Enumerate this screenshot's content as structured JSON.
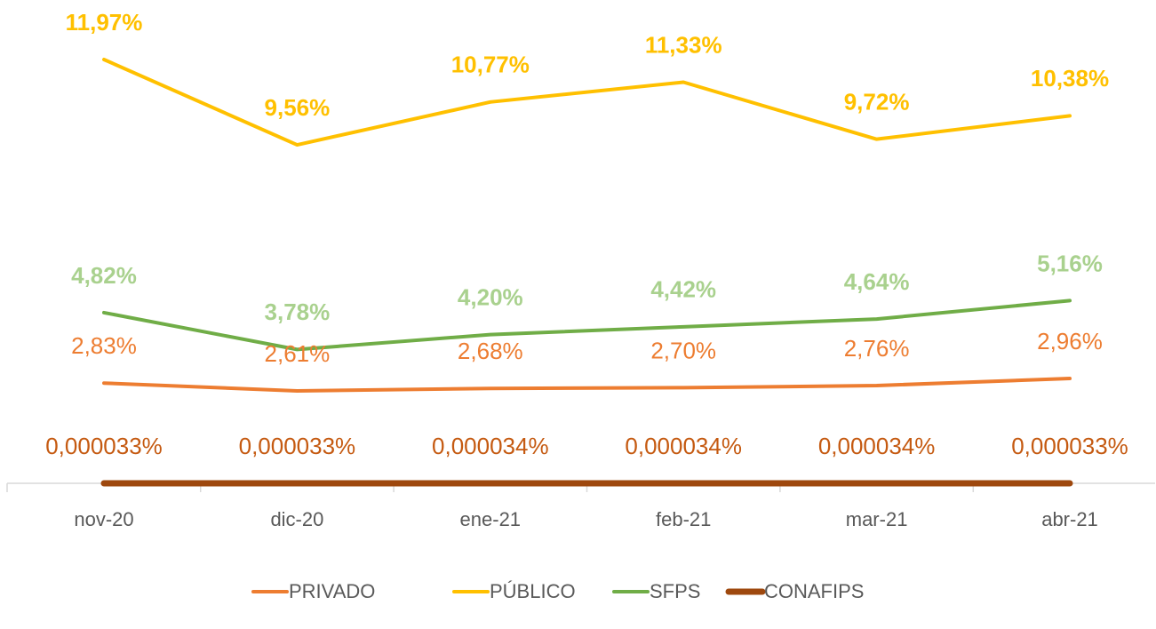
{
  "chart_data": {
    "type": "line",
    "categories": [
      "nov-20",
      "dic-20",
      "ene-21",
      "feb-21",
      "mar-21",
      "abr-21"
    ],
    "series": [
      {
        "name": "PRIVADO",
        "color": "#ed7d31",
        "label_color": "#ed7d31",
        "label_weight": "normal",
        "values": [
          2.83,
          2.61,
          2.68,
          2.7,
          2.76,
          2.96
        ],
        "value_labels": [
          "2,83%",
          "2,61%",
          "2,68%",
          "2,70%",
          "2,76%",
          "2,96%"
        ]
      },
      {
        "name": "PÚBLICO",
        "color": "#ffc000",
        "label_color": "#ffc000",
        "label_weight": "bold",
        "values": [
          11.97,
          9.56,
          10.77,
          11.33,
          9.72,
          10.38
        ],
        "value_labels": [
          "11,97%",
          "9,56%",
          "10,77%",
          "11,33%",
          "9,72%",
          "10,38%"
        ]
      },
      {
        "name": "SFPS",
        "color": "#70ad47",
        "label_color": "#a9d18e",
        "label_weight": "bold",
        "values": [
          4.82,
          3.78,
          4.2,
          4.42,
          4.64,
          5.16
        ],
        "value_labels": [
          "4,82%",
          "3,78%",
          "4,20%",
          "4,42%",
          "4,64%",
          "5,16%"
        ]
      },
      {
        "name": "CONAFIPS",
        "color": "#9e480e",
        "label_color": "#c55a11",
        "label_weight": "normal",
        "values": [
          3.3e-05,
          3.3e-05,
          3.4e-05,
          3.4e-05,
          3.4e-05,
          3.3e-05
        ],
        "value_labels": [
          "0,000033%",
          "0,000033%",
          "0,000034%",
          "0,000034%",
          "0,000034%",
          "0,000033%"
        ]
      }
    ],
    "legend": "bottom"
  }
}
